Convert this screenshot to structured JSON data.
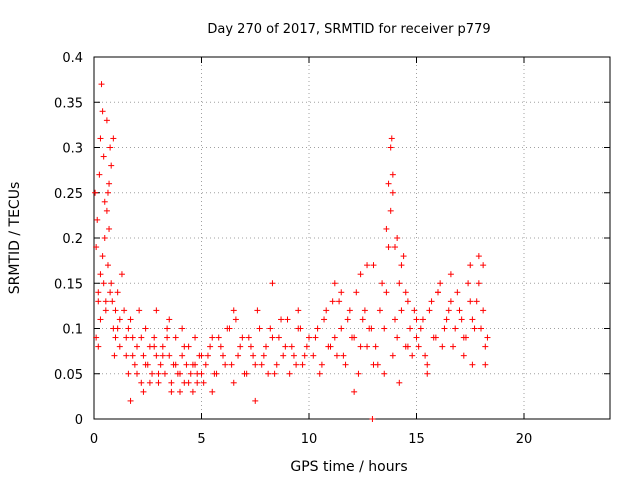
{
  "chart_data": {
    "type": "scatter",
    "title": "Day 270 of 2017, SRMTID for receiver p779",
    "xlabel": "GPS time / hours",
    "ylabel": "SRMTID / TECUs",
    "xlim": [
      0,
      24
    ],
    "ylim": [
      0,
      0.4
    ],
    "xticks": [
      0,
      5,
      10,
      15,
      20
    ],
    "xtick_labels": [
      "0",
      "5",
      "10",
      "15",
      "20"
    ],
    "yticks": [
      0,
      0.05,
      0.1,
      0.15,
      0.2,
      0.25,
      0.3,
      0.35,
      0.4
    ],
    "ytick_labels": [
      "0",
      "0.05",
      "0.1",
      "0.15",
      "0.2",
      "0.25",
      "0.3",
      "0.35",
      "0.4"
    ],
    "grid": true,
    "marker": "+",
    "series_color": "#ff0000",
    "series": [
      {
        "name": "SRMTID",
        "x": [
          0.05,
          0.1,
          0.15,
          0.2,
          0.25,
          0.3,
          0.35,
          0.4,
          0.45,
          0.5,
          0.55,
          0.6,
          0.65,
          0.7,
          0.75,
          0.8,
          0.85,
          0.9,
          0.95,
          1.0,
          1.1,
          1.2,
          1.3,
          1.4,
          1.5,
          0.1,
          0.2,
          0.3,
          0.4,
          0.5,
          0.6,
          0.7,
          0.8,
          0.9,
          1.0,
          1.1,
          1.2,
          0.2,
          0.3,
          0.45,
          0.55,
          0.65,
          0.75,
          1.5,
          1.6,
          1.7,
          1.8,
          1.9,
          2.0,
          2.1,
          2.2,
          2.3,
          2.4,
          2.5,
          2.6,
          2.7,
          2.8,
          2.9,
          3.0,
          3.1,
          3.2,
          3.3,
          3.4,
          3.5,
          3.6,
          3.7,
          3.8,
          3.9,
          4.0,
          4.1,
          4.2,
          4.3,
          4.4,
          4.5,
          4.6,
          4.7,
          4.8,
          4.9,
          5.0,
          1.6,
          1.8,
          2.0,
          2.2,
          2.4,
          2.6,
          2.8,
          3.0,
          3.2,
          3.4,
          3.6,
          3.8,
          4.0,
          4.2,
          4.4,
          4.6,
          4.8,
          5.0,
          1.7,
          2.3,
          2.9,
          3.5,
          4.1,
          4.7,
          5.2,
          5.4,
          5.6,
          5.8,
          6.0,
          6.2,
          6.4,
          6.6,
          6.8,
          7.0,
          7.2,
          7.4,
          7.6,
          7.8,
          8.0,
          8.2,
          8.4,
          8.6,
          8.8,
          9.0,
          9.2,
          9.4,
          9.6,
          9.8,
          10.0,
          5.1,
          5.3,
          5.5,
          5.7,
          5.9,
          6.1,
          6.3,
          6.5,
          6.7,
          6.9,
          7.1,
          7.3,
          7.5,
          7.7,
          7.9,
          8.1,
          8.3,
          8.5,
          8.7,
          8.9,
          9.1,
          9.3,
          9.5,
          9.7,
          9.9,
          5.5,
          6.5,
          7.5,
          8.3,
          9.5,
          10.2,
          10.4,
          10.6,
          10.8,
          11.0,
          11.2,
          11.4,
          11.6,
          11.8,
          12.0,
          12.2,
          12.4,
          12.6,
          12.8,
          13.0,
          10.3,
          10.5,
          10.7,
          10.9,
          11.1,
          11.3,
          11.5,
          11.7,
          11.9,
          12.1,
          12.3,
          12.5,
          12.7,
          12.9,
          11.2,
          11.5,
          12.1,
          12.4,
          12.7,
          12.95,
          13.0,
          13.1,
          13.3,
          13.5,
          13.6,
          13.7,
          13.8,
          13.9,
          14.0,
          14.1,
          14.2,
          14.3,
          14.4,
          14.5,
          14.6,
          14.7,
          14.8,
          14.9,
          15.0,
          13.4,
          13.6,
          13.7,
          13.8,
          13.85,
          13.9,
          14.0,
          14.1,
          14.3,
          14.5,
          13.2,
          13.5,
          13.9,
          14.2,
          14.6,
          15.0,
          15.1,
          15.3,
          15.5,
          15.7,
          15.9,
          16.1,
          16.3,
          16.5,
          16.7,
          16.9,
          17.1,
          17.3,
          17.5,
          17.7,
          17.9,
          18.1,
          18.3,
          15.2,
          15.4,
          15.6,
          15.8,
          16.0,
          16.2,
          16.4,
          16.6,
          16.8,
          17.0,
          17.2,
          17.4,
          17.6,
          17.8,
          18.0,
          18.2,
          15.5,
          16.0,
          16.6,
          17.2,
          17.5,
          17.6,
          17.9,
          18.1,
          18.2
        ],
        "y": [
          0.25,
          0.19,
          0.22,
          0.14,
          0.27,
          0.31,
          0.37,
          0.34,
          0.29,
          0.24,
          0.12,
          0.33,
          0.25,
          0.21,
          0.3,
          0.15,
          0.13,
          0.1,
          0.07,
          0.09,
          0.14,
          0.11,
          0.16,
          0.12,
          0.09,
          0.09,
          0.13,
          0.16,
          0.18,
          0.2,
          0.23,
          0.26,
          0.28,
          0.31,
          0.12,
          0.1,
          0.08,
          0.08,
          0.11,
          0.15,
          0.13,
          0.17,
          0.14,
          0.07,
          0.05,
          0.11,
          0.09,
          0.06,
          0.08,
          0.12,
          0.04,
          0.07,
          0.1,
          0.06,
          0.08,
          0.05,
          0.09,
          0.07,
          0.04,
          0.06,
          0.08,
          0.05,
          0.1,
          0.07,
          0.04,
          0.06,
          0.09,
          0.05,
          0.03,
          0.07,
          0.04,
          0.06,
          0.08,
          0.05,
          0.03,
          0.06,
          0.04,
          0.07,
          0.05,
          0.1,
          0.07,
          0.05,
          0.09,
          0.06,
          0.04,
          0.08,
          0.05,
          0.07,
          0.09,
          0.03,
          0.06,
          0.05,
          0.08,
          0.04,
          0.06,
          0.05,
          0.07,
          0.02,
          0.03,
          0.12,
          0.11,
          0.1,
          0.09,
          0.06,
          0.08,
          0.05,
          0.09,
          0.07,
          0.1,
          0.06,
          0.11,
          0.08,
          0.05,
          0.09,
          0.07,
          0.12,
          0.06,
          0.08,
          0.1,
          0.05,
          0.09,
          0.07,
          0.11,
          0.08,
          0.06,
          0.1,
          0.07,
          0.09,
          0.04,
          0.07,
          0.09,
          0.05,
          0.08,
          0.06,
          0.1,
          0.04,
          0.07,
          0.09,
          0.05,
          0.08,
          0.06,
          0.1,
          0.07,
          0.05,
          0.09,
          0.06,
          0.11,
          0.08,
          0.05,
          0.07,
          0.1,
          0.06,
          0.08,
          0.03,
          0.12,
          0.02,
          0.15,
          0.12,
          0.07,
          0.1,
          0.06,
          0.12,
          0.08,
          0.09,
          0.13,
          0.07,
          0.11,
          0.09,
          0.14,
          0.08,
          0.12,
          0.1,
          0.06,
          0.09,
          0.05,
          0.11,
          0.08,
          0.13,
          0.07,
          0.1,
          0.06,
          0.12,
          0.09,
          0.05,
          0.11,
          0.08,
          0.1,
          0.15,
          0.14,
          0.03,
          0.16,
          0.17,
          0.0,
          0.17,
          0.08,
          0.12,
          0.1,
          0.14,
          0.19,
          0.23,
          0.27,
          0.11,
          0.09,
          0.15,
          0.12,
          0.18,
          0.08,
          0.13,
          0.1,
          0.07,
          0.12,
          0.09,
          0.15,
          0.21,
          0.26,
          0.3,
          0.31,
          0.25,
          0.19,
          0.2,
          0.17,
          0.14,
          0.06,
          0.05,
          0.07,
          0.04,
          0.08,
          0.11,
          0.08,
          0.11,
          0.06,
          0.13,
          0.09,
          0.15,
          0.1,
          0.12,
          0.08,
          0.14,
          0.11,
          0.09,
          0.13,
          0.1,
          0.15,
          0.12,
          0.09,
          0.1,
          0.07,
          0.12,
          0.09,
          0.14,
          0.08,
          0.11,
          0.13,
          0.1,
          0.12,
          0.09,
          0.15,
          0.11,
          0.13,
          0.1,
          0.08,
          0.05,
          0.14,
          0.16,
          0.07,
          0.17,
          0.06,
          0.18,
          0.17,
          0.06
        ]
      }
    ]
  }
}
